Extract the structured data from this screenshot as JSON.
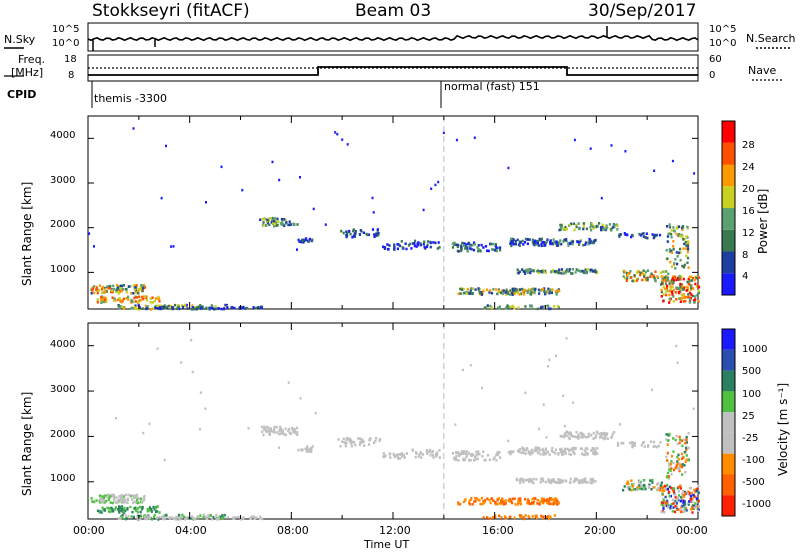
{
  "header": {
    "station": "Stokkseyri (fitACF)",
    "beam": "Beam 03",
    "date": "30/Sep/2017"
  },
  "panels": {
    "nsky_label": "N.Sky",
    "nsearch_label": "N.Search",
    "freq_label_1": "Freq.",
    "freq_label_2": "[MHz]",
    "nave_label": "Nave",
    "cpid_label": "CPID",
    "nsky_ticks": [
      "10^5",
      "10^0"
    ],
    "nsearch_ticks": [
      "10^5",
      "10^0"
    ],
    "freq_ticks": [
      "18",
      "8"
    ],
    "nave_ticks": [
      "60",
      "0"
    ],
    "cpid_1": "themis -3300",
    "cpid_2": "normal (fast) 151"
  },
  "colors": {
    "power_scale": [
      "#1a1aff",
      "#1f3fa0",
      "#3a7a50",
      "#5aa070",
      "#c8d020",
      "#ff9900",
      "#ff5000",
      "#ff0000"
    ],
    "velocity_scale": [
      "#1a1aff",
      "#2a4fb0",
      "#2a8060",
      "#4fc040",
      "#c0c0c0",
      "#c0c0c0",
      "#ff8c00",
      "#ff6000",
      "#ff2000"
    ]
  },
  "chart_data": [
    {
      "type": "heatmap",
      "panel": "power",
      "xlabel": "",
      "ylabel": "Slant Range [km]",
      "xlim_hours": [
        0,
        24
      ],
      "ylim_km": [
        180,
        4500
      ],
      "yticks": [
        "1000",
        "2000",
        "3000",
        "4000"
      ],
      "colorbar_label": "Power [dB]",
      "colorbar_ticks": [
        "4",
        "8",
        "12",
        "16",
        "20",
        "24",
        "28"
      ],
      "marker_hour": 14.0
    },
    {
      "type": "heatmap",
      "panel": "velocity",
      "xlabel": "Time UT",
      "ylabel": "Slant Range [km]",
      "xticks": [
        "00:00",
        "04:00",
        "08:00",
        "12:00",
        "16:00",
        "20:00",
        "00:00"
      ],
      "xlim_hours": [
        0,
        24
      ],
      "ylim_km": [
        180,
        4500
      ],
      "yticks": [
        "1000",
        "2000",
        "3000",
        "4000"
      ],
      "colorbar_label": "Velocity [m s⁻¹]",
      "colorbar_ticks": [
        "1000",
        "500",
        "100",
        "25",
        "-25",
        "-100",
        "-500",
        "-1000"
      ],
      "marker_hour": 14.0
    }
  ]
}
